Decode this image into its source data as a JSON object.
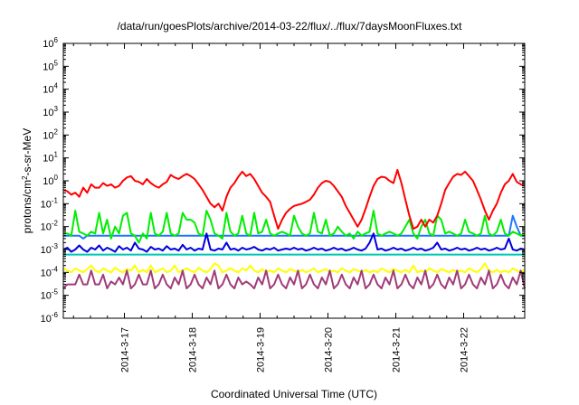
{
  "chart_data": {
    "type": "line",
    "title": "/data/run/goesPlots/archive/2014-03-22/flux/../flux/7daysMoonFluxes.txt",
    "xlabel": "Coordinated Universal Time (UTC)",
    "ylabel": "protons/cm2-s-sr-MeV",
    "y_scale": "log",
    "ylim": [
      1e-06,
      1000000.0
    ],
    "y_ticks": [
      {
        "exp": "-6"
      },
      {
        "exp": "-5"
      },
      {
        "exp": "-4"
      },
      {
        "exp": "-3"
      },
      {
        "exp": "-2"
      },
      {
        "exp": "-1"
      },
      {
        "exp": "0"
      },
      {
        "exp": "1"
      },
      {
        "exp": "2"
      },
      {
        "exp": "3"
      },
      {
        "exp": "4"
      },
      {
        "exp": "5"
      },
      {
        "exp": "6"
      }
    ],
    "x_range_days": [
      16.1,
      22.9
    ],
    "x_ticks": [
      "2014-3-17",
      "2014-3-18",
      "2014-3-19",
      "2014-3-20",
      "2014-3-21",
      "2014-3-22"
    ],
    "grid": false,
    "series": [
      {
        "color": "#ff0000",
        "values": [
          0.4,
          0.35,
          0.25,
          0.3,
          0.2,
          0.5,
          0.3,
          0.7,
          0.5,
          0.5,
          0.8,
          0.6,
          0.7,
          0.5,
          0.6,
          1.0,
          1.4,
          1.6,
          1.0,
          0.9,
          0.7,
          1.2,
          0.8,
          0.6,
          0.5,
          0.7,
          0.9,
          1.8,
          1.4,
          1.2,
          1.6,
          2.0,
          1.6,
          1.2,
          0.7,
          0.4,
          0.2,
          0.1,
          0.07,
          0.1,
          0.05,
          0.2,
          0.5,
          0.8,
          1.5,
          2.5,
          1.6,
          2.0,
          1.2,
          0.6,
          0.3,
          0.2,
          0.12,
          0.03,
          0.008,
          0.02,
          0.04,
          0.06,
          0.08,
          0.09,
          0.1,
          0.12,
          0.15,
          0.25,
          0.5,
          0.8,
          1.0,
          0.9,
          0.6,
          0.35,
          0.2,
          0.08,
          0.04,
          0.02,
          0.01,
          0.02,
          0.06,
          0.2,
          0.6,
          1.2,
          1.5,
          1.4,
          1.0,
          0.8,
          3.0,
          0.8,
          0.15,
          0.03,
          0.008,
          0.01,
          0.02,
          0.01,
          0.02,
          0.015,
          0.03,
          0.1,
          0.4,
          0.8,
          1.5,
          2.0,
          1.8,
          2.5,
          1.6,
          1.0,
          0.4,
          0.15,
          0.05,
          0.02,
          0.05,
          0.1,
          0.3,
          0.7,
          1.0,
          2.0,
          0.9,
          0.7,
          0.6
        ]
      },
      {
        "color": "#00ee00",
        "values": [
          0.005,
          0.005,
          0.004,
          0.05,
          0.006,
          0.005,
          0.004,
          0.006,
          0.005,
          0.04,
          0.005,
          0.02,
          0.003,
          0.01,
          0.005,
          0.03,
          0.04,
          0.005,
          0.004,
          0.002,
          0.005,
          0.003,
          0.04,
          0.005,
          0.004,
          0.006,
          0.04,
          0.005,
          0.004,
          0.005,
          0.04,
          0.02,
          0.02,
          0.015,
          0.005,
          0.004,
          0.05,
          0.02,
          0.005,
          0.004,
          0.003,
          0.04,
          0.006,
          0.004,
          0.005,
          0.03,
          0.005,
          0.004,
          0.04,
          0.005,
          0.006,
          0.02,
          0.005,
          0.004,
          0.005,
          0.006,
          0.005,
          0.004,
          0.03,
          0.01,
          0.005,
          0.004,
          0.005,
          0.04,
          0.006,
          0.005,
          0.02,
          0.004,
          0.005,
          0.01,
          0.006,
          0.004,
          0.005,
          0.003,
          0.006,
          0.004,
          0.005,
          0.006,
          0.05,
          0.005,
          0.004,
          0.005,
          0.006,
          0.005,
          0.004,
          0.005,
          0.01,
          0.02,
          0.005,
          0.003,
          0.01,
          0.02,
          0.005,
          0.004,
          0.03,
          0.02,
          0.005,
          0.006,
          0.005,
          0.004,
          0.005,
          0.02,
          0.006,
          0.005,
          0.004,
          0.005,
          0.03,
          0.005,
          0.004,
          0.006,
          0.02,
          0.005,
          0.004,
          0.006,
          0.005,
          0.004,
          0.005
        ]
      },
      {
        "color": "#1e78ff",
        "values": [
          0.004,
          0.004,
          0.004,
          0.004,
          0.004,
          0.003,
          0.004,
          0.004,
          0.004,
          0.004,
          0.004,
          0.004,
          0.004,
          0.004,
          0.004,
          0.004,
          0.004,
          0.004,
          0.004,
          0.004,
          0.004,
          0.004,
          0.004,
          0.004,
          0.004,
          0.004,
          0.004,
          0.004,
          0.004,
          0.004,
          0.004,
          0.004,
          0.004,
          0.004,
          0.004,
          0.004,
          0.004,
          0.004,
          0.004,
          0.004,
          0.004,
          0.004,
          0.004,
          0.004,
          0.004,
          0.004,
          0.004,
          0.004,
          0.004,
          0.004,
          0.004,
          0.004,
          0.004,
          0.004,
          0.004,
          0.004,
          0.004,
          0.004,
          0.004,
          0.004,
          0.004,
          0.004,
          0.004,
          0.004,
          0.004,
          0.004,
          0.004,
          0.004,
          0.004,
          0.004,
          0.004,
          0.004,
          0.004,
          0.004,
          0.004,
          0.004,
          0.004,
          0.004,
          0.004,
          0.004,
          0.004,
          0.004,
          0.004,
          0.004,
          0.004,
          0.004,
          0.004,
          0.004,
          0.004,
          0.004,
          0.004,
          0.004,
          0.004,
          0.004,
          0.004,
          0.004,
          0.004,
          0.004,
          0.004,
          0.004,
          0.004,
          0.004,
          0.004,
          0.004,
          0.004,
          0.004,
          0.004,
          0.004,
          0.004,
          0.004,
          0.004,
          0.004,
          0.004,
          0.03,
          0.01,
          0.004,
          0.004
        ]
      },
      {
        "color": "#0000dd",
        "values": [
          0.001,
          0.0012,
          0.0008,
          0.001,
          0.0015,
          0.001,
          0.0008,
          0.0012,
          0.001,
          0.0015,
          0.0009,
          0.0012,
          0.001,
          0.0008,
          0.0014,
          0.001,
          0.0012,
          0.0009,
          0.002,
          0.0011,
          0.001,
          0.0008,
          0.0013,
          0.001,
          0.0011,
          0.0009,
          0.0014,
          0.001,
          0.0011,
          0.0009,
          0.0016,
          0.001,
          0.0012,
          0.0009,
          0.0011,
          0.001,
          0.005,
          0.001,
          0.0009,
          0.0011,
          0.001,
          0.002,
          0.001,
          0.0011,
          0.0009,
          0.0012,
          0.001,
          0.0011,
          0.0013,
          0.001,
          0.0009,
          0.0011,
          0.001,
          0.0012,
          0.0009,
          0.001,
          0.0011,
          0.001,
          0.0012,
          0.001,
          0.0011,
          0.0009,
          0.001,
          0.0012,
          0.001,
          0.0011,
          0.0009,
          0.001,
          0.0012,
          0.001,
          0.0011,
          0.0009,
          0.001,
          0.0012,
          0.001,
          0.0009,
          0.0011,
          0.002,
          0.005,
          0.001,
          0.0011,
          0.0009,
          0.001,
          0.0012,
          0.001,
          0.0011,
          0.0009,
          0.001,
          0.0012,
          0.001,
          0.0011,
          0.0009,
          0.001,
          0.0012,
          0.002,
          0.001,
          0.0011,
          0.0009,
          0.001,
          0.0012,
          0.001,
          0.0011,
          0.0009,
          0.001,
          0.0012,
          0.001,
          0.0011,
          0.0009,
          0.001,
          0.0012,
          0.001,
          0.0011,
          0.003,
          0.001,
          0.0009,
          0.0011,
          0.001
        ]
      },
      {
        "color": "#00c8b4",
        "values": [
          0.0006,
          0.0006,
          0.0006,
          0.0006,
          0.0006,
          0.0006,
          0.0006,
          0.0006,
          0.0006,
          0.0006,
          0.0006,
          0.0006,
          0.0006,
          0.0006,
          0.0006,
          0.0006,
          0.0006,
          0.0006,
          0.0006,
          0.0006,
          0.0006,
          0.0006,
          0.0006,
          0.0006,
          0.0006,
          0.0006,
          0.0006,
          0.0006,
          0.0006,
          0.0006,
          0.0006,
          0.0006,
          0.0006,
          0.0006,
          0.0006,
          0.0006,
          0.0006,
          0.0006,
          0.0006,
          0.0006,
          0.0006,
          0.0006,
          0.0006,
          0.0006,
          0.0006,
          0.0006,
          0.0006,
          0.0006,
          0.0006,
          0.0006,
          0.0006,
          0.0006,
          0.0006,
          0.0006,
          0.0006,
          0.0006,
          0.0006,
          0.0006,
          0.0006,
          0.0006,
          0.0006,
          0.0006,
          0.0006,
          0.0006,
          0.0006,
          0.0006,
          0.0006,
          0.0006,
          0.0006,
          0.0006,
          0.0006,
          0.0006,
          0.0006,
          0.0006,
          0.0006,
          0.0006,
          0.0006,
          0.0006,
          0.0006,
          0.0006,
          0.0006,
          0.0006,
          0.0006,
          0.0006,
          0.0006,
          0.0006,
          0.0006,
          0.0006,
          0.0006,
          0.0006,
          0.0006,
          0.0006,
          0.0006,
          0.0006,
          0.0006,
          0.0006,
          0.0006,
          0.0006,
          0.0006,
          0.0006,
          0.0006,
          0.0006,
          0.0006,
          0.0006,
          0.0006,
          0.0006,
          0.0006,
          0.0006,
          0.0006,
          0.0006,
          0.0006,
          0.0006,
          0.0006,
          0.0006,
          0.0006,
          0.0006,
          0.0006
        ]
      },
      {
        "color": "#ffff00",
        "values": [
          0.00015,
          0.00012,
          0.0001,
          0.00015,
          0.00012,
          0.0001,
          0.00014,
          0.0002,
          0.00012,
          0.0001,
          0.00015,
          0.00012,
          0.0001,
          0.00016,
          0.00012,
          0.0001,
          0.00014,
          0.00012,
          0.0002,
          0.0001,
          0.00013,
          0.0001,
          0.0002,
          0.0001,
          0.00012,
          0.00015,
          0.0001,
          0.00012,
          0.0002,
          0.0001,
          0.00012,
          0.00015,
          0.00012,
          0.0001,
          0.00016,
          0.00012,
          0.0001,
          0.00014,
          0.00025,
          0.0002,
          0.0001,
          0.00012,
          0.00015,
          0.00012,
          0.0001,
          0.00015,
          0.00012,
          0.0002,
          0.00012,
          0.0001,
          0.00014,
          0.0001,
          0.00012,
          0.0001,
          0.00015,
          0.00012,
          0.0001,
          0.00014,
          0.00012,
          0.0001,
          0.00013,
          0.0001,
          0.00012,
          0.00015,
          0.0001,
          0.00012,
          0.00014,
          0.0001,
          0.00012,
          0.0001,
          0.00015,
          0.00012,
          0.0001,
          0.00014,
          0.00012,
          0.0001,
          0.00013,
          0.0001,
          0.00012,
          0.0001,
          0.00015,
          0.00012,
          0.0001,
          0.00014,
          0.00012,
          0.0001,
          0.00013,
          0.0001,
          0.0002,
          0.0001,
          0.00012,
          0.0001,
          0.00015,
          0.00012,
          0.0001,
          0.00014,
          0.00012,
          0.0001,
          0.00013,
          0.0001,
          0.00012,
          0.0001,
          0.00015,
          0.00012,
          0.0001,
          0.00014,
          0.00025,
          0.00012,
          0.0001,
          0.00013,
          0.0001,
          0.00012,
          0.0001,
          0.00015,
          0.00012,
          0.0001,
          0.00014
        ]
      },
      {
        "color": "#a03c78",
        "values": [
          2e-05,
          3e-05,
          3e-05,
          3e-05,
          8e-05,
          3e-05,
          3e-05,
          0.00012,
          3e-05,
          3e-05,
          8e-05,
          2e-05,
          4e-05,
          3e-05,
          6e-05,
          3e-05,
          0.00012,
          2e-05,
          3e-05,
          8e-05,
          3e-05,
          3e-05,
          0.00012,
          2e-05,
          3e-05,
          8e-05,
          3e-05,
          2e-05,
          6e-05,
          3e-05,
          0.00012,
          2e-05,
          3e-05,
          8e-05,
          3e-05,
          2e-05,
          6e-05,
          3e-05,
          0.00012,
          2e-05,
          3e-05,
          8e-05,
          3e-05,
          2e-05,
          6e-05,
          3e-05,
          4e-05,
          3e-05,
          2e-05,
          6e-05,
          3e-05,
          0.00012,
          2e-05,
          3e-05,
          8e-05,
          3e-05,
          2e-05,
          6e-05,
          3e-05,
          0.00012,
          2e-05,
          3e-05,
          8e-05,
          3e-05,
          2e-05,
          6e-05,
          3e-05,
          0.00012,
          2e-05,
          3e-05,
          8e-05,
          3e-05,
          2e-05,
          6e-05,
          3e-05,
          0.00012,
          2e-05,
          3e-05,
          8e-05,
          3e-05,
          2e-05,
          6e-05,
          3e-05,
          0.00012,
          2e-05,
          3e-05,
          8e-05,
          3e-05,
          2e-05,
          6e-05,
          3e-05,
          0.00012,
          2e-05,
          3e-05,
          8e-05,
          3e-05,
          2e-05,
          6e-05,
          3e-05,
          0.00012,
          2e-05,
          3e-05,
          8e-05,
          3e-05,
          2e-05,
          6e-05,
          3e-05,
          0.00012,
          2e-05,
          3e-05,
          8e-05,
          3e-05,
          2e-05,
          6e-05,
          3e-05,
          0.00012,
          2e-05
        ]
      }
    ]
  }
}
